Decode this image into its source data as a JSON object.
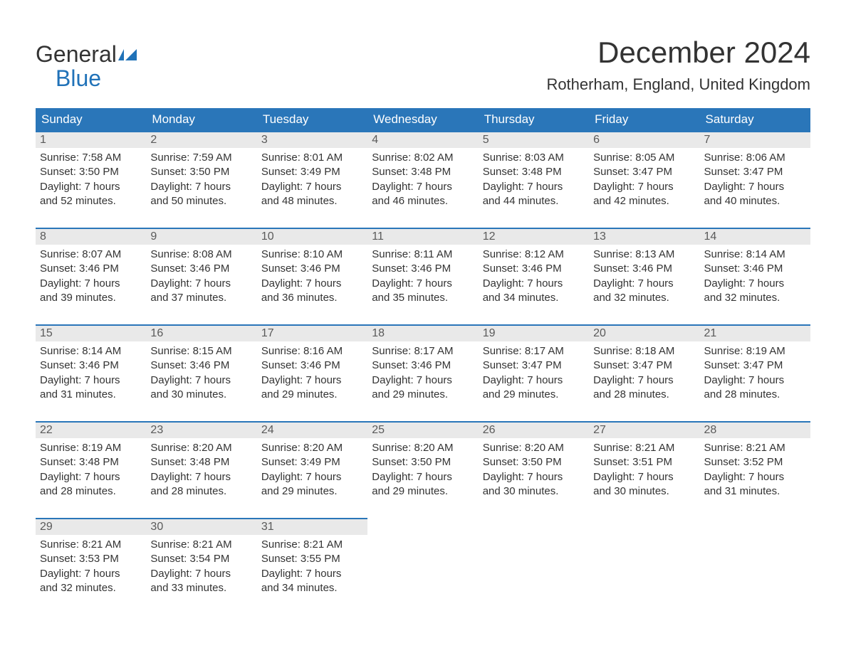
{
  "colors": {
    "brand_blue": "#2072b8",
    "header_bg": "#2a76b9",
    "header_text": "#ffffff",
    "daynum_bg": "#e9e9e9",
    "daynum_text": "#5a5a5a",
    "body_text": "#333333",
    "rule": "#2a76b9",
    "page_bg": "#ffffff"
  },
  "logo": {
    "line1": "General",
    "line2": "Blue"
  },
  "title": "December 2024",
  "location": "Rotherham, England, United Kingdom",
  "day_headers": [
    "Sunday",
    "Monday",
    "Tuesday",
    "Wednesday",
    "Thursday",
    "Friday",
    "Saturday"
  ],
  "weeks": [
    [
      {
        "n": "1",
        "sr": "Sunrise: 7:58 AM",
        "ss": "Sunset: 3:50 PM",
        "d1": "Daylight: 7 hours",
        "d2": "and 52 minutes."
      },
      {
        "n": "2",
        "sr": "Sunrise: 7:59 AM",
        "ss": "Sunset: 3:50 PM",
        "d1": "Daylight: 7 hours",
        "d2": "and 50 minutes."
      },
      {
        "n": "3",
        "sr": "Sunrise: 8:01 AM",
        "ss": "Sunset: 3:49 PM",
        "d1": "Daylight: 7 hours",
        "d2": "and 48 minutes."
      },
      {
        "n": "4",
        "sr": "Sunrise: 8:02 AM",
        "ss": "Sunset: 3:48 PM",
        "d1": "Daylight: 7 hours",
        "d2": "and 46 minutes."
      },
      {
        "n": "5",
        "sr": "Sunrise: 8:03 AM",
        "ss": "Sunset: 3:48 PM",
        "d1": "Daylight: 7 hours",
        "d2": "and 44 minutes."
      },
      {
        "n": "6",
        "sr": "Sunrise: 8:05 AM",
        "ss": "Sunset: 3:47 PM",
        "d1": "Daylight: 7 hours",
        "d2": "and 42 minutes."
      },
      {
        "n": "7",
        "sr": "Sunrise: 8:06 AM",
        "ss": "Sunset: 3:47 PM",
        "d1": "Daylight: 7 hours",
        "d2": "and 40 minutes."
      }
    ],
    [
      {
        "n": "8",
        "sr": "Sunrise: 8:07 AM",
        "ss": "Sunset: 3:46 PM",
        "d1": "Daylight: 7 hours",
        "d2": "and 39 minutes."
      },
      {
        "n": "9",
        "sr": "Sunrise: 8:08 AM",
        "ss": "Sunset: 3:46 PM",
        "d1": "Daylight: 7 hours",
        "d2": "and 37 minutes."
      },
      {
        "n": "10",
        "sr": "Sunrise: 8:10 AM",
        "ss": "Sunset: 3:46 PM",
        "d1": "Daylight: 7 hours",
        "d2": "and 36 minutes."
      },
      {
        "n": "11",
        "sr": "Sunrise: 8:11 AM",
        "ss": "Sunset: 3:46 PM",
        "d1": "Daylight: 7 hours",
        "d2": "and 35 minutes."
      },
      {
        "n": "12",
        "sr": "Sunrise: 8:12 AM",
        "ss": "Sunset: 3:46 PM",
        "d1": "Daylight: 7 hours",
        "d2": "and 34 minutes."
      },
      {
        "n": "13",
        "sr": "Sunrise: 8:13 AM",
        "ss": "Sunset: 3:46 PM",
        "d1": "Daylight: 7 hours",
        "d2": "and 32 minutes."
      },
      {
        "n": "14",
        "sr": "Sunrise: 8:14 AM",
        "ss": "Sunset: 3:46 PM",
        "d1": "Daylight: 7 hours",
        "d2": "and 32 minutes."
      }
    ],
    [
      {
        "n": "15",
        "sr": "Sunrise: 8:14 AM",
        "ss": "Sunset: 3:46 PM",
        "d1": "Daylight: 7 hours",
        "d2": "and 31 minutes."
      },
      {
        "n": "16",
        "sr": "Sunrise: 8:15 AM",
        "ss": "Sunset: 3:46 PM",
        "d1": "Daylight: 7 hours",
        "d2": "and 30 minutes."
      },
      {
        "n": "17",
        "sr": "Sunrise: 8:16 AM",
        "ss": "Sunset: 3:46 PM",
        "d1": "Daylight: 7 hours",
        "d2": "and 29 minutes."
      },
      {
        "n": "18",
        "sr": "Sunrise: 8:17 AM",
        "ss": "Sunset: 3:46 PM",
        "d1": "Daylight: 7 hours",
        "d2": "and 29 minutes."
      },
      {
        "n": "19",
        "sr": "Sunrise: 8:17 AM",
        "ss": "Sunset: 3:47 PM",
        "d1": "Daylight: 7 hours",
        "d2": "and 29 minutes."
      },
      {
        "n": "20",
        "sr": "Sunrise: 8:18 AM",
        "ss": "Sunset: 3:47 PM",
        "d1": "Daylight: 7 hours",
        "d2": "and 28 minutes."
      },
      {
        "n": "21",
        "sr": "Sunrise: 8:19 AM",
        "ss": "Sunset: 3:47 PM",
        "d1": "Daylight: 7 hours",
        "d2": "and 28 minutes."
      }
    ],
    [
      {
        "n": "22",
        "sr": "Sunrise: 8:19 AM",
        "ss": "Sunset: 3:48 PM",
        "d1": "Daylight: 7 hours",
        "d2": "and 28 minutes."
      },
      {
        "n": "23",
        "sr": "Sunrise: 8:20 AM",
        "ss": "Sunset: 3:48 PM",
        "d1": "Daylight: 7 hours",
        "d2": "and 28 minutes."
      },
      {
        "n": "24",
        "sr": "Sunrise: 8:20 AM",
        "ss": "Sunset: 3:49 PM",
        "d1": "Daylight: 7 hours",
        "d2": "and 29 minutes."
      },
      {
        "n": "25",
        "sr": "Sunrise: 8:20 AM",
        "ss": "Sunset: 3:50 PM",
        "d1": "Daylight: 7 hours",
        "d2": "and 29 minutes."
      },
      {
        "n": "26",
        "sr": "Sunrise: 8:20 AM",
        "ss": "Sunset: 3:50 PM",
        "d1": "Daylight: 7 hours",
        "d2": "and 30 minutes."
      },
      {
        "n": "27",
        "sr": "Sunrise: 8:21 AM",
        "ss": "Sunset: 3:51 PM",
        "d1": "Daylight: 7 hours",
        "d2": "and 30 minutes."
      },
      {
        "n": "28",
        "sr": "Sunrise: 8:21 AM",
        "ss": "Sunset: 3:52 PM",
        "d1": "Daylight: 7 hours",
        "d2": "and 31 minutes."
      }
    ],
    [
      {
        "n": "29",
        "sr": "Sunrise: 8:21 AM",
        "ss": "Sunset: 3:53 PM",
        "d1": "Daylight: 7 hours",
        "d2": "and 32 minutes."
      },
      {
        "n": "30",
        "sr": "Sunrise: 8:21 AM",
        "ss": "Sunset: 3:54 PM",
        "d1": "Daylight: 7 hours",
        "d2": "and 33 minutes."
      },
      {
        "n": "31",
        "sr": "Sunrise: 8:21 AM",
        "ss": "Sunset: 3:55 PM",
        "d1": "Daylight: 7 hours",
        "d2": "and 34 minutes."
      },
      null,
      null,
      null,
      null
    ]
  ]
}
